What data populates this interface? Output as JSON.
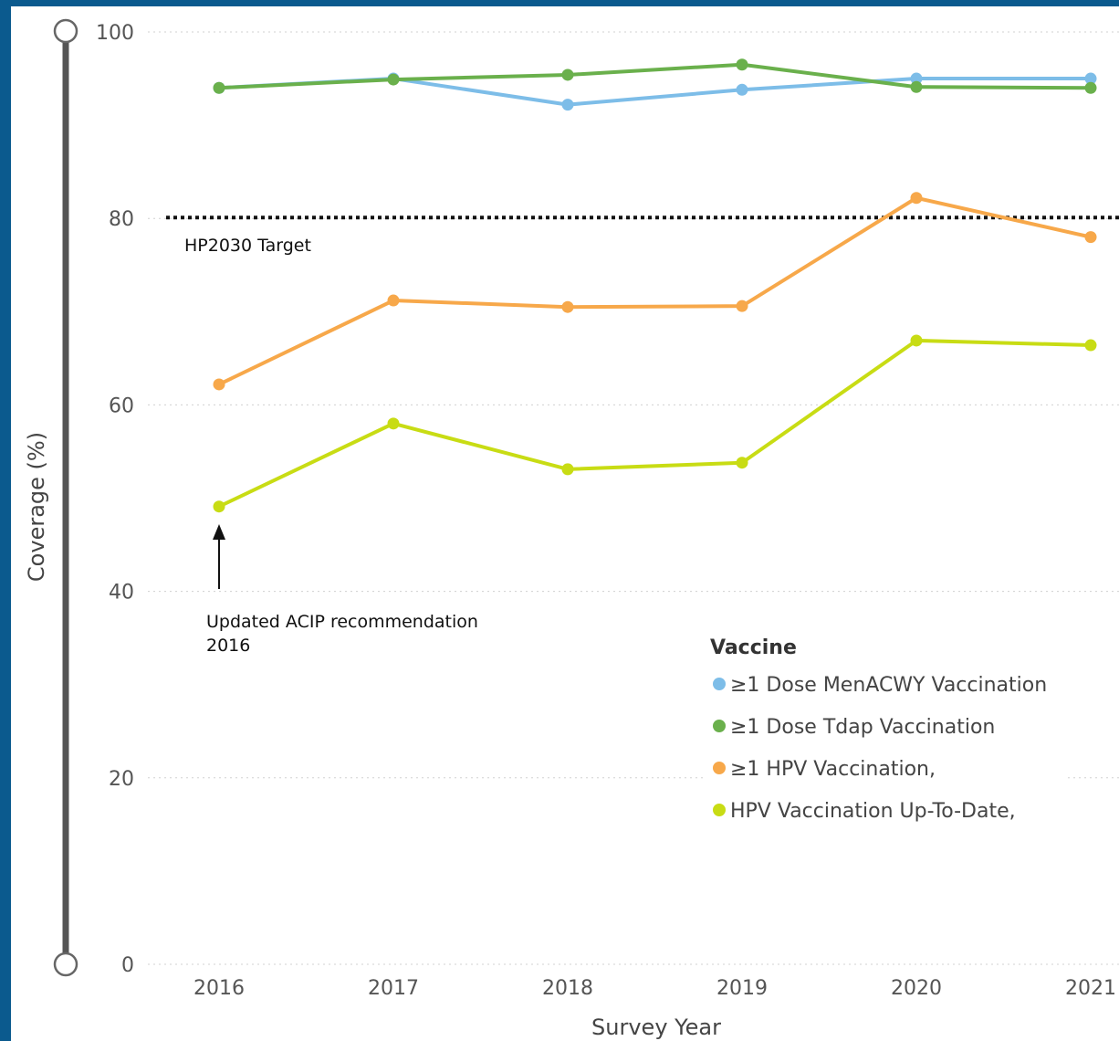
{
  "chart_data": {
    "type": "line",
    "xlabel": "Survey Year",
    "ylabel": "Coverage (%)",
    "ylim": [
      0,
      100
    ],
    "yticks": [
      "0",
      "20",
      "40",
      "60",
      "80",
      "100"
    ],
    "categories": [
      "2016",
      "2017",
      "2018",
      "2019",
      "2020",
      "2021"
    ],
    "grid": "horizontal dotted",
    "legend": {
      "title": "Vaccine",
      "placement": "bottom-right"
    },
    "series": [
      {
        "name": "≥1 Dose MenACWY Vaccination",
        "color": "#7dbde8",
        "values": [
          94.0,
          95.0,
          92.2,
          93.8,
          95.0,
          95.0
        ]
      },
      {
        "name": "≥1 Dose Tdap Vaccination",
        "color": "#6ab04c",
        "values": [
          94.0,
          94.9,
          95.4,
          96.5,
          94.1,
          94.0
        ]
      },
      {
        "name": "≥1 HPV Vaccination,",
        "color": "#f7a84a",
        "values": [
          62.2,
          71.2,
          70.5,
          70.6,
          82.2,
          78.0
        ]
      },
      {
        "name": "HPV Vaccination Up-To-Date,",
        "color": "#c8dc14",
        "values": [
          49.1,
          58.0,
          53.1,
          53.8,
          66.9,
          66.4
        ]
      }
    ],
    "reference_line": {
      "label": "HP2030 Target",
      "value": 80
    },
    "annotations": [
      {
        "text_lines": [
          "Updated ACIP recommendation",
          "2016"
        ],
        "x": "2016"
      }
    ]
  }
}
